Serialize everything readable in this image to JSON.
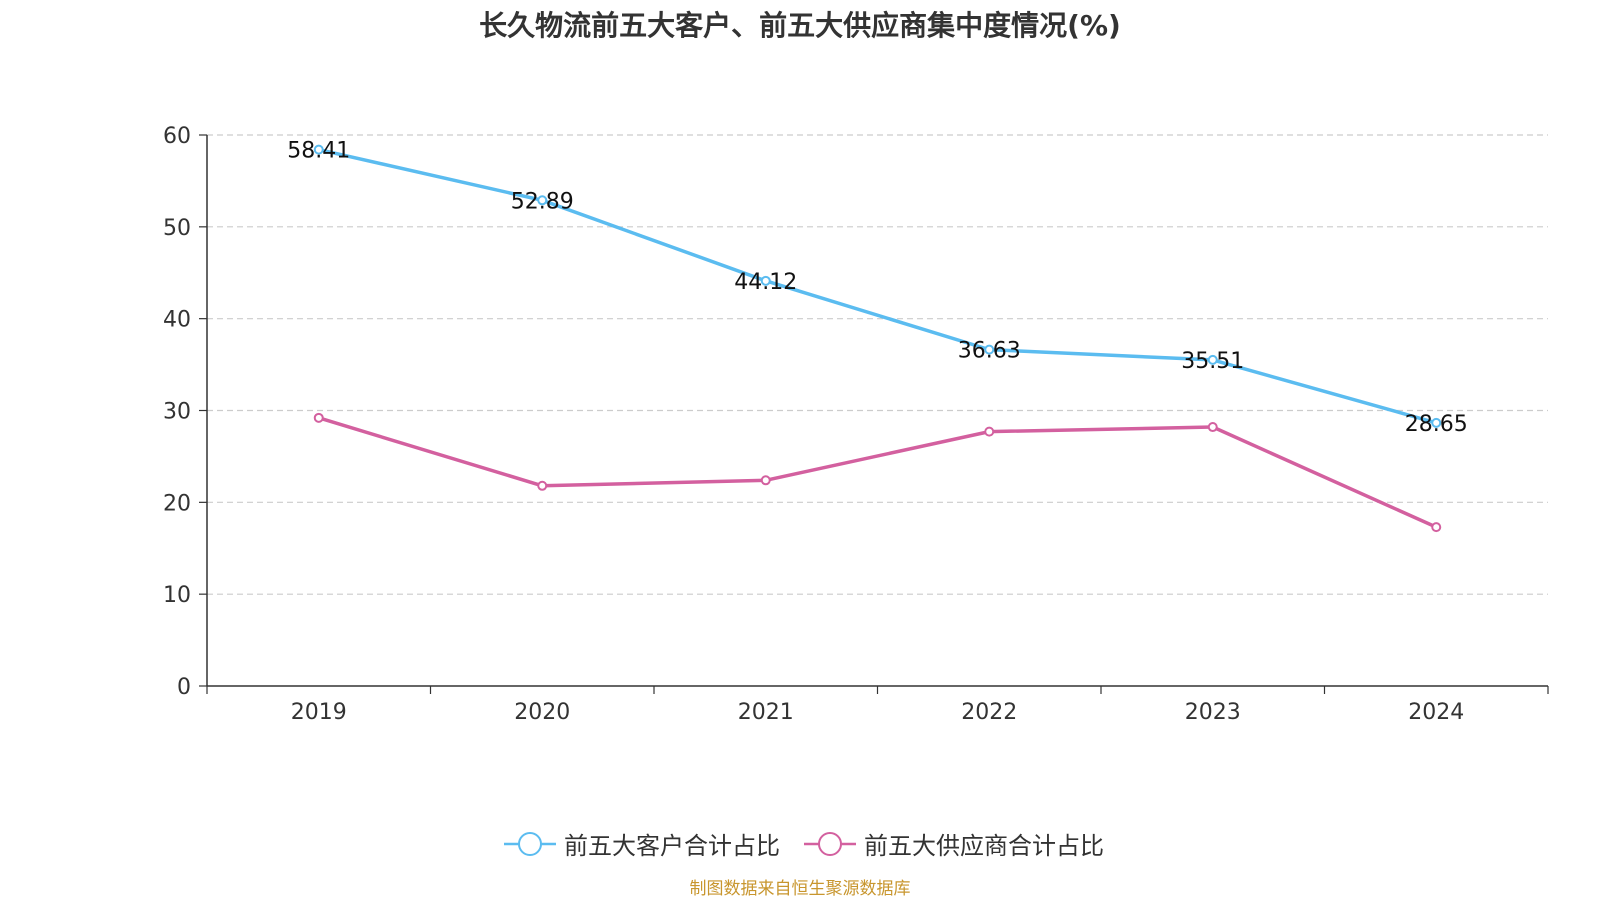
{
  "title": "长久物流前五大客户、前五大供应商集中度情况(%)",
  "source": "制图数据来自恒生聚源数据库",
  "colors": {
    "customers": "#5bbcf0",
    "suppliers": "#d3609f",
    "axis": "#333333",
    "grid": "#cccccc"
  },
  "chart_data": {
    "type": "line",
    "title": "长久物流前五大客户、前五大供应商集中度情况(%)",
    "categories": [
      "2019",
      "2020",
      "2021",
      "2022",
      "2023",
      "2024"
    ],
    "series": [
      {
        "name": "前五大客户合计占比",
        "values": [
          58.41,
          52.89,
          44.12,
          36.63,
          35.51,
          28.65
        ],
        "show_labels": true
      },
      {
        "name": "前五大供应商合计占比",
        "values": [
          29.2,
          21.8,
          22.4,
          27.7,
          28.2,
          17.3
        ],
        "show_labels": false
      }
    ],
    "ylim": [
      0,
      60
    ],
    "yticks": [
      0,
      10,
      20,
      30,
      40,
      50,
      60
    ],
    "grid": true,
    "legend_position": "bottom-center"
  }
}
